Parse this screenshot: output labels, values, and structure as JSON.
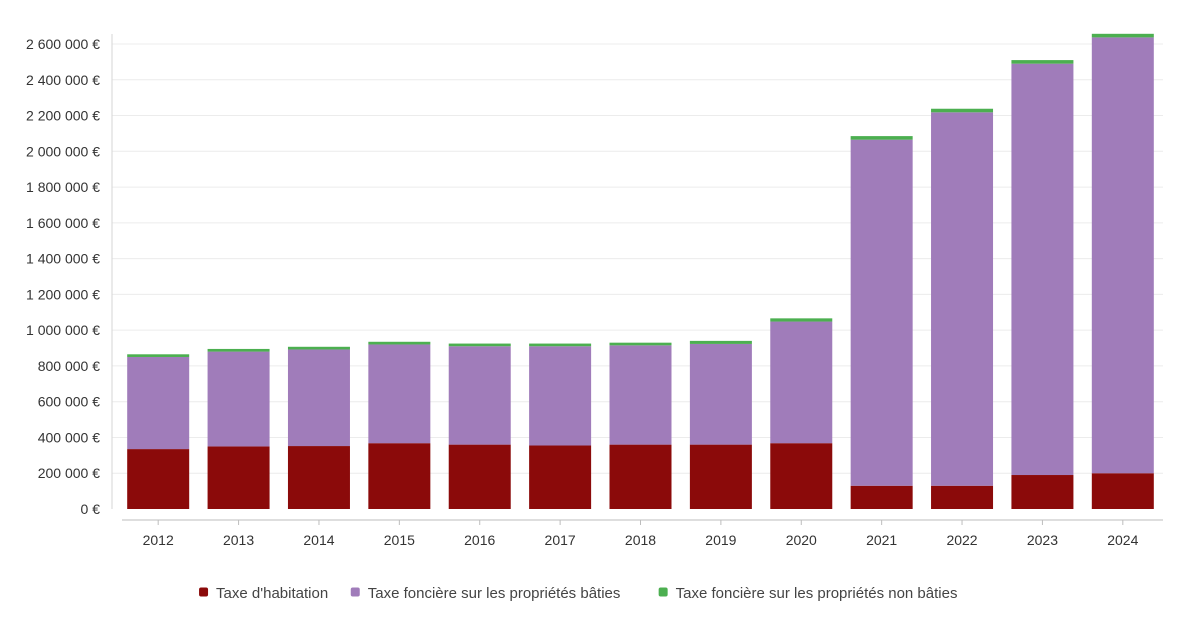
{
  "chart_data": {
    "type": "bar",
    "stacked": true,
    "title": "",
    "xlabel": "",
    "ylabel": "",
    "categories": [
      "2012",
      "2013",
      "2014",
      "2015",
      "2016",
      "2017",
      "2018",
      "2019",
      "2020",
      "2021",
      "2022",
      "2023",
      "2024"
    ],
    "series": [
      {
        "name": "Taxe d'habitation",
        "color": "#8b0a0a",
        "values": [
          335000,
          350000,
          352000,
          368000,
          360000,
          355000,
          360000,
          360000,
          368000,
          130000,
          130000,
          190000,
          200000
        ]
      },
      {
        "name": "Taxe foncière sur les propriétés bâties",
        "color": "#a07cba",
        "values": [
          515000,
          530000,
          540000,
          552000,
          550000,
          555000,
          555000,
          563000,
          680000,
          1935000,
          2088000,
          2300000,
          2437000
        ]
      },
      {
        "name": "Taxe foncière sur les propriétés non bâties",
        "color": "#4caf50",
        "values": [
          15000,
          15000,
          15000,
          15000,
          15000,
          15000,
          15000,
          17000,
          18000,
          20000,
          20000,
          20000,
          20000
        ]
      }
    ],
    "ylim": [
      0,
      2600000
    ],
    "y_ticks": [
      0,
      200000,
      400000,
      600000,
      800000,
      1000000,
      1200000,
      1400000,
      1600000,
      1800000,
      2000000,
      2200000,
      2400000,
      2600000
    ],
    "y_tick_labels": [
      "0 €",
      "200 000 €",
      "400 000 €",
      "600 000 €",
      "800 000 €",
      "1 000 000 €",
      "1 200 000 €",
      "1 400 000 €",
      "1 600 000 €",
      "1 800 000 €",
      "2 000 000 €",
      "2 200 000 €",
      "2 400 000 €",
      "2 600 000 €"
    ],
    "grid": true,
    "legend_position": "bottom"
  }
}
